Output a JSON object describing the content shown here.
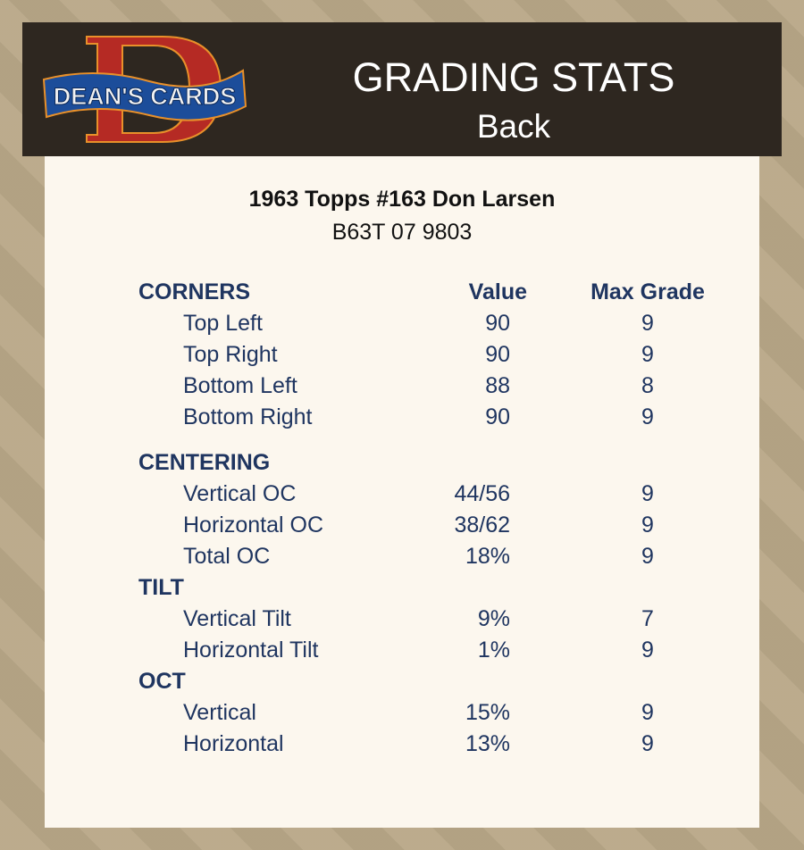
{
  "header": {
    "logo_text": "DEAN'S CARDS",
    "title": "GRADING STATS",
    "subtitle": "Back"
  },
  "card": {
    "name": "1963 Topps #163 Don Larsen",
    "cert": "B63T 07 9803"
  },
  "columns": {
    "value": "Value",
    "max_grade": "Max Grade"
  },
  "sections": [
    {
      "label": "CORNERS",
      "items": [
        {
          "label": "Top Left",
          "value": "90",
          "grade": "9"
        },
        {
          "label": "Top Right",
          "value": "90",
          "grade": "9"
        },
        {
          "label": "Bottom Left",
          "value": "88",
          "grade": "8"
        },
        {
          "label": "Bottom Right",
          "value": "90",
          "grade": "9"
        }
      ]
    },
    {
      "label": "CENTERING",
      "items": [
        {
          "label": "Vertical OC",
          "value": "44/56",
          "grade": "9"
        },
        {
          "label": "Horizontal OC",
          "value": "38/62",
          "grade": "9"
        },
        {
          "label": "Total OC",
          "value": "18%",
          "grade": "9"
        }
      ]
    },
    {
      "label": "TILT",
      "items": [
        {
          "label": "Vertical Tilt",
          "value": "9%",
          "grade": "7"
        },
        {
          "label": "Horizontal Tilt",
          "value": "1%",
          "grade": "9"
        }
      ]
    },
    {
      "label": "OCT",
      "items": [
        {
          "label": "Vertical",
          "value": "15%",
          "grade": "9"
        },
        {
          "label": "Horizontal",
          "value": "13%",
          "grade": "9"
        }
      ]
    }
  ]
}
